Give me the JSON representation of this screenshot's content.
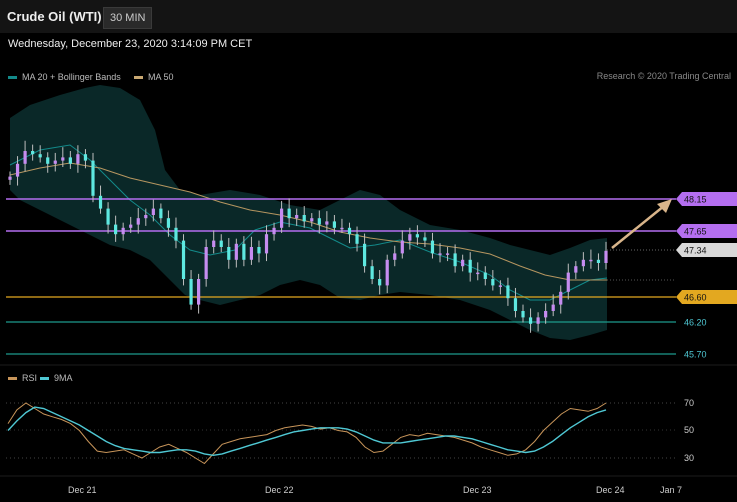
{
  "header": {
    "title": "Crude Oil (WTI)",
    "timeframe": "30 MIN"
  },
  "datetime": "Wednesday, December 23, 2020 3:14:09 PM CET",
  "legend": {
    "ma20": {
      "label": "MA 20 + Bollinger Bands",
      "color": "#138a8a"
    },
    "ma50": {
      "label": "MA 50",
      "color": "#c8a872"
    }
  },
  "copyright": "Research © 2020 Trading Central",
  "rsi_legend": {
    "rsi": {
      "label": "RSI",
      "color": "#c8955a"
    },
    "ma9": {
      "label": "9MA",
      "color": "#4fc8d4"
    }
  },
  "levels": [
    {
      "value": "48.15",
      "kind": "resistance",
      "color": "#b46ef0"
    },
    {
      "value": "47.65",
      "kind": "resistance",
      "color": "#b46ef0"
    },
    {
      "value": "47.34",
      "kind": "current",
      "color": "#d8d8d8"
    },
    {
      "value": "46.60",
      "kind": "support",
      "color": "#e3a820"
    },
    {
      "value": "46.20",
      "kind": "support",
      "color": "#1e9a8c"
    },
    {
      "value": "45.70",
      "kind": "support",
      "color": "#1e9a8c"
    }
  ],
  "rsi_axis": [
    "70",
    "50",
    "30"
  ],
  "x_axis": [
    "Dec 21",
    "Dec 22",
    "Dec 23",
    "Dec 24",
    "Jan 7"
  ],
  "chart_data": {
    "type": "candlestick",
    "price_axis": [
      "48.15",
      "47.65",
      "47.34",
      "46.60",
      "46.20",
      "45.70"
    ],
    "close": [
      48.5,
      48.7,
      48.9,
      48.85,
      48.8,
      48.7,
      48.75,
      48.8,
      48.7,
      48.85,
      48.75,
      48.2,
      48.0,
      47.75,
      47.6,
      47.7,
      47.75,
      47.85,
      47.9,
      48.0,
      47.85,
      47.7,
      47.5,
      46.9,
      46.5,
      46.9,
      47.4,
      47.5,
      47.4,
      47.2,
      47.45,
      47.2,
      47.4,
      47.3,
      47.6,
      47.7,
      48.0,
      47.85,
      47.9,
      47.8,
      47.85,
      47.75,
      47.8,
      47.7,
      47.7,
      47.6,
      47.45,
      47.1,
      46.9,
      46.8,
      47.2,
      47.3,
      47.5,
      47.6,
      47.55,
      47.5,
      47.3,
      47.3,
      47.3,
      47.1,
      47.2,
      47.0,
      47.0,
      46.9,
      46.8,
      46.8,
      46.6,
      46.4,
      46.3,
      46.2,
      46.3,
      46.4,
      46.5,
      46.7,
      47.0,
      47.1,
      47.2,
      47.2,
      47.15,
      47.34
    ],
    "rsi": [
      55,
      65,
      70,
      66,
      62,
      60,
      58,
      55,
      50,
      42,
      35,
      34,
      35,
      36,
      33,
      30,
      34,
      38,
      40,
      37,
      34,
      30,
      26,
      33,
      40,
      42,
      44,
      45,
      46,
      47,
      50,
      52,
      53,
      54,
      53,
      51,
      52,
      50,
      49,
      45,
      38,
      34,
      35,
      40,
      45,
      47,
      46,
      48,
      47,
      46,
      45,
      43,
      41,
      38,
      36,
      34,
      32,
      33,
      36,
      42,
      50,
      56,
      62,
      66,
      65,
      64,
      66,
      70
    ],
    "rsi_ma9": [
      50,
      57,
      63,
      67,
      66,
      63,
      60,
      57,
      54,
      50,
      46,
      42,
      39,
      37,
      36,
      35,
      34,
      34,
      35,
      36,
      36,
      35,
      33,
      32,
      33,
      35,
      37,
      39,
      41,
      43,
      45,
      47,
      49,
      50,
      51,
      52,
      52,
      52,
      51,
      49,
      46,
      43,
      41,
      41,
      41,
      42,
      43,
      44,
      45,
      46,
      46,
      45,
      44,
      42,
      40,
      38,
      36,
      35,
      34,
      35,
      38,
      42,
      47,
      52,
      56,
      60,
      63,
      65
    ]
  }
}
